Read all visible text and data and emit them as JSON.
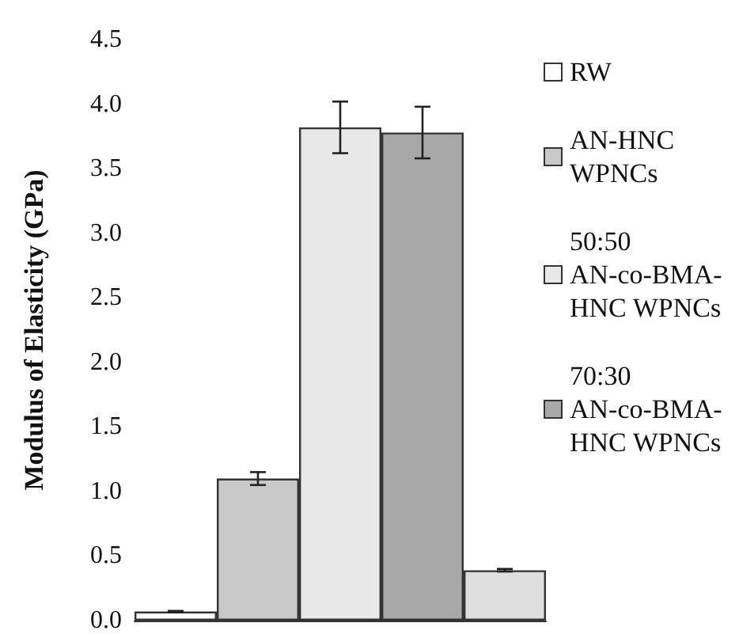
{
  "chart_data": {
    "type": "bar",
    "ylabel": "Modulus of Elasticity (GPa)",
    "categories": [
      null,
      null,
      null,
      null,
      null
    ],
    "series": [
      {
        "name": "RW",
        "color": "#ffffff",
        "values": [
          0.07,
          null,
          null,
          null,
          null
        ],
        "errors": [
          0.005,
          null,
          null,
          null,
          null
        ]
      },
      {
        "name": "AN-HNC WPNCs",
        "color": "#c8c8c8",
        "values": [
          null,
          1.1,
          null,
          null,
          null
        ],
        "errors": [
          null,
          0.05,
          null,
          null,
          null
        ]
      },
      {
        "name": "50:50 AN-co-BMA-HNC WPNCs",
        "color": "#e8e8e8",
        "values": [
          null,
          null,
          3.82,
          null,
          null
        ],
        "errors": [
          null,
          null,
          0.2,
          null,
          null
        ]
      },
      {
        "name": "70:30 AN-co-BMA-HNC WPNCs",
        "color": "#a8a8a8",
        "values": [
          null,
          null,
          null,
          3.78,
          null
        ],
        "errors": [
          null,
          null,
          null,
          0.2,
          null
        ]
      },
      {
        "color": "#dedede",
        "values": [
          null,
          null,
          null,
          null,
          0.39
        ],
        "errors": [
          null,
          null,
          null,
          null,
          0.01
        ]
      }
    ],
    "ylim": [
      0,
      4.5
    ],
    "yticks": [
      {
        "value": 0,
        "label": "0.0"
      },
      {
        "value": 0.5,
        "label": "0.5"
      },
      {
        "value": 1,
        "label": "1.0"
      },
      {
        "value": 1.5,
        "label": "1.5"
      },
      {
        "value": 2,
        "label": "2.0"
      },
      {
        "value": 2.5,
        "label": "2.5"
      },
      {
        "value": 3,
        "label": "3.0"
      },
      {
        "value": 3.5,
        "label": "3.5"
      },
      {
        "value": 4,
        "label": "4.0"
      },
      {
        "value": 4.5,
        "label": "4.5"
      }
    ],
    "grid": false,
    "legend": "right"
  }
}
